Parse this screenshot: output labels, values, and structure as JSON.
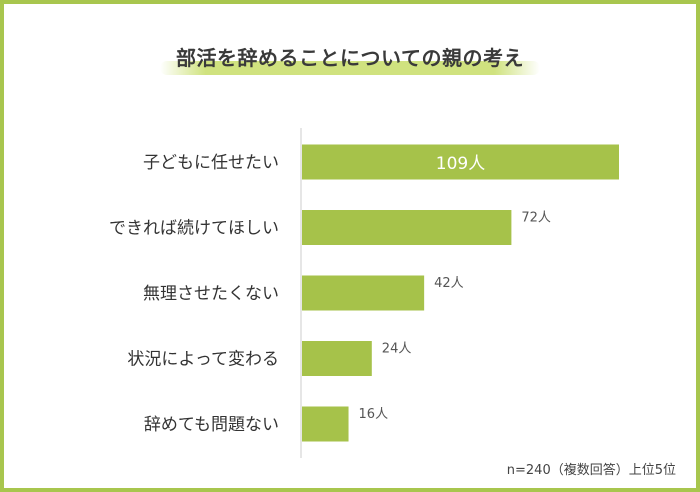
{
  "colors": {
    "frame": "#a8c64e",
    "bar": "#a6c24a",
    "axis": "#cccccc",
    "label": "#333333",
    "value_outside": "#555555",
    "value_inside": "#ffffff"
  },
  "footnote": "n=240（複数回答）上位5位",
  "chart_data": {
    "type": "bar",
    "orientation": "horizontal",
    "title": "部活を辞めることについての親の考え",
    "categories": [
      "子どもに任せたい",
      "できれば続けてほしい",
      "無理させたくない",
      "状況によって変わる",
      "辞めても問題ない"
    ],
    "values": [
      109,
      72,
      42,
      24,
      16
    ],
    "value_labels": [
      "109人",
      "72人",
      "42人",
      "24人",
      "16人"
    ],
    "unit": "人",
    "xlim": [
      0,
      140
    ],
    "grid": false,
    "legend": "none"
  }
}
